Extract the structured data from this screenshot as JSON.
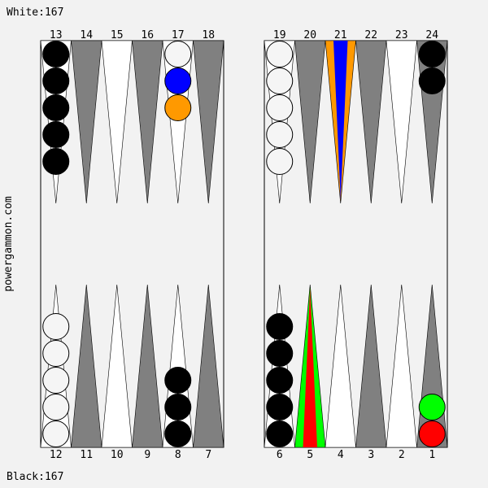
{
  "header": {
    "white_score": "White:167"
  },
  "footer": {
    "black_score": "Black:167"
  },
  "site_label": "powergammon.com",
  "colors": {
    "background": "#f2f2f2",
    "board": "#f2f2f2",
    "dark_point": "#808080",
    "light_point": "#ffffff",
    "white_checker": "#f5f5f5",
    "black_checker": "#000000",
    "move_from_outer": "#ff9900",
    "move_from_inner": "#0000ff",
    "move_to_outer": "#00ff00",
    "move_to_inner": "#ff0000"
  },
  "top_labels": [
    "13",
    "14",
    "15",
    "16",
    "17",
    "18",
    "19",
    "20",
    "21",
    "22",
    "23",
    "24"
  ],
  "bottom_labels": [
    "12",
    "11",
    "10",
    "9",
    "8",
    "7",
    "6",
    "5",
    "4",
    "3",
    "2",
    "1"
  ],
  "points": {
    "13": {
      "color": "black",
      "count": 5
    },
    "17": {
      "color": "white",
      "count": 1
    },
    "19": {
      "color": "white",
      "count": 5
    },
    "24": {
      "color": "black",
      "count": 2
    },
    "12": {
      "color": "white",
      "count": 5
    },
    "8": {
      "color": "black",
      "count": 3
    },
    "6": {
      "color": "black",
      "count": 5
    },
    "1": {
      "color": "none",
      "count": 0
    }
  },
  "highlight_checkers": [
    {
      "point": "17",
      "slot": 2,
      "fill": "#0000ff",
      "label": "blue"
    },
    {
      "point": "17",
      "slot": 3,
      "fill": "#ff9900",
      "label": "orange"
    },
    {
      "point": "1",
      "slot": 1,
      "fill": "#ff0000",
      "label": "red"
    },
    {
      "point": "1",
      "slot": 2,
      "fill": "#00ff00",
      "label": "green"
    }
  ],
  "highlight_points": [
    {
      "point": "21",
      "outer": "#ff9900",
      "inner": "#0000ff"
    },
    {
      "point": "5",
      "outer": "#00ff00",
      "inner": "#ff0000"
    }
  ]
}
